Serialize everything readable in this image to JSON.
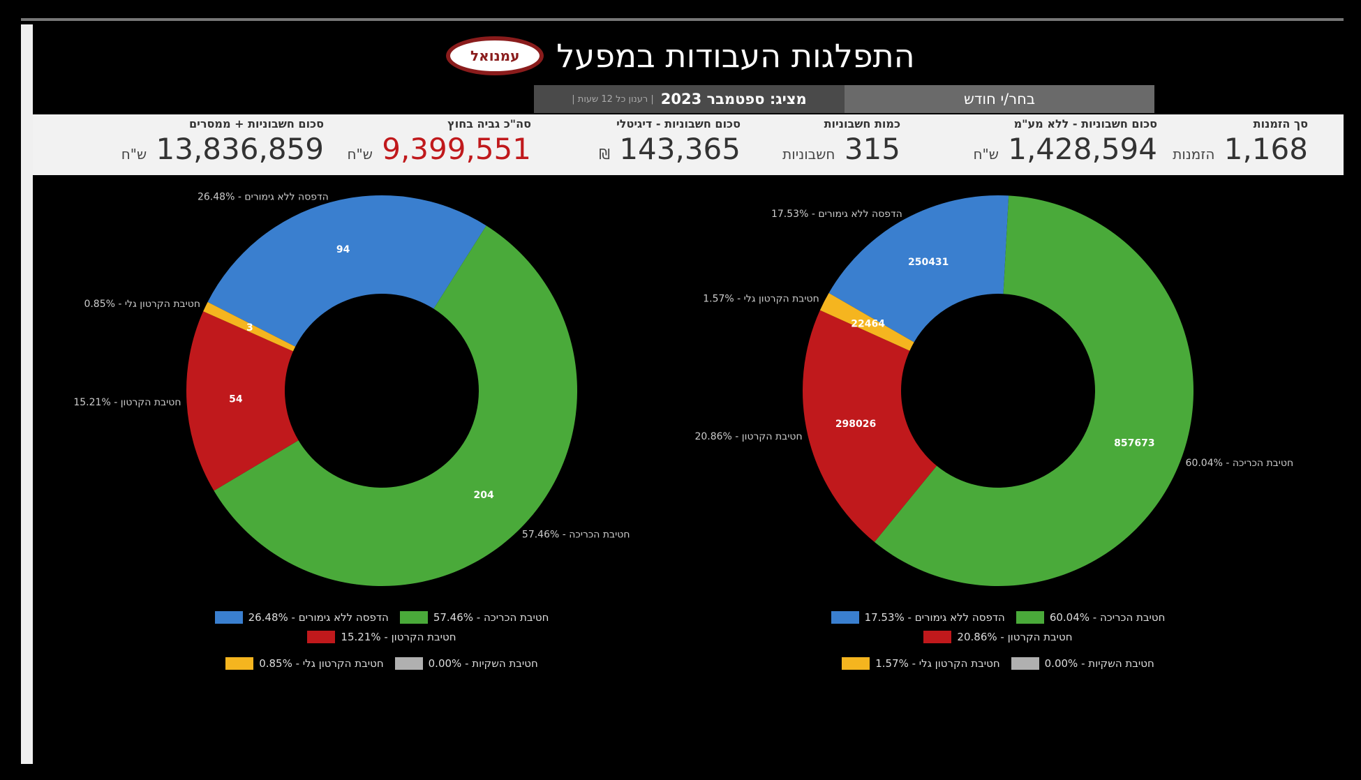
{
  "header": {
    "title": "התפלגות העבודות במפעל",
    "logo": "עמנואל",
    "showing": "מציג: ספטמבר 2023",
    "refresh": "| רענון כל 12 שעות |",
    "choose_month": "בחר/י חודש"
  },
  "kpis": [
    {
      "label": "סך הזמנות",
      "value": "1,168",
      "unit": "הזמנות"
    },
    {
      "label": "סכום חשבוניות - ללא מע\"מ",
      "value": "1,428,594",
      "unit": "ש\"ח"
    },
    {
      "label": "כמות חשבוניות",
      "value": "315",
      "unit": "חשבוניות"
    },
    {
      "label": "סכום חשבוניות - דיגיטלי",
      "value": "143,365",
      "unit": "₪"
    },
    {
      "label": "סה\"כ גביה בחוץ",
      "value": "9,399,551",
      "unit": "ש\"ח",
      "color": "#c0191c"
    },
    {
      "label": "סכום חשבוניות + ממסרים",
      "value": "13,836,859",
      "unit": "ש\"ח"
    }
  ],
  "chart_data": [
    {
      "type": "pie",
      "donut": true,
      "categories": [
        "הדפסה ללא גימורים - 26.48%",
        "חטיבת הכריכה - 57.46%",
        "חטיבת הקרטון - 15.21%",
        "חטיבת הקרטון גלי - 0.85%",
        "חטיבת השקיות - 0.00%"
      ],
      "values": [
        94,
        204,
        54,
        3,
        0
      ],
      "colors": [
        "#3a7fcf",
        "#4aaa3a",
        "#c0191c",
        "#f5b51f",
        "#b0b0b0"
      ]
    },
    {
      "type": "pie",
      "donut": true,
      "categories": [
        "הדפסה ללא גימורים - 17.53%",
        "חטיבת הכריכה - 60.04%",
        "חטיבת הקרטון - 20.86%",
        "חטיבת הקרטון גלי - 1.57%",
        "חטיבת השקיות - 0.00%"
      ],
      "values": [
        250431,
        857673,
        298026,
        22464,
        0
      ],
      "colors": [
        "#3a7fcf",
        "#4aaa3a",
        "#c0191c",
        "#f5b51f",
        "#b0b0b0"
      ]
    }
  ]
}
